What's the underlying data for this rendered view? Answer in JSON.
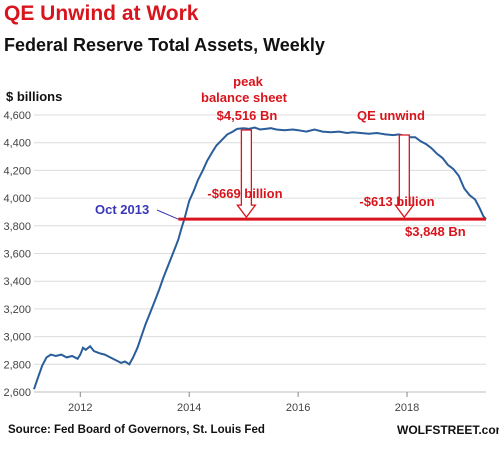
{
  "header": {
    "title": "QE Unwind at Work",
    "subtitle": "Federal Reserve Total Assets, Weekly"
  },
  "footer": {
    "source": "Source: Fed Board of Governors, St. Louis Fed",
    "brand": "WOLFSTREET.com"
  },
  "colors": {
    "line": "#2a5d9a",
    "accent": "#d9141c",
    "annotation_blue": "#3a37b8",
    "grid": "#dcdcdc"
  },
  "chart_data": {
    "type": "line",
    "title": "Federal Reserve Total Assets, Weekly",
    "ylabel": "$ billions",
    "xlim": [
      2011.15,
      2019.45
    ],
    "ylim": [
      2600,
      4600
    ],
    "x_ticks": [
      2012,
      2014,
      2016,
      2018
    ],
    "x_tick_labels": [
      "2012",
      "2014",
      "2016",
      "2018"
    ],
    "y_ticks": [
      2600,
      2800,
      3000,
      3200,
      3400,
      3600,
      3800,
      4000,
      4200,
      4400,
      4600
    ],
    "y_tick_labels": [
      "2,600",
      "2,800",
      "3,000",
      "3,200",
      "3,400",
      "3,600",
      "3,800",
      "4,000",
      "4,200",
      "4,400",
      "4,600"
    ],
    "grid": true,
    "series": [
      {
        "points": [
          [
            2011.15,
            2620
          ],
          [
            2011.22,
            2700
          ],
          [
            2011.3,
            2790
          ],
          [
            2011.38,
            2850
          ],
          [
            2011.46,
            2870
          ],
          [
            2011.55,
            2860
          ],
          [
            2011.65,
            2870
          ],
          [
            2011.75,
            2850
          ],
          [
            2011.85,
            2860
          ],
          [
            2011.95,
            2840
          ],
          [
            2012.0,
            2870
          ],
          [
            2012.05,
            2920
          ],
          [
            2012.1,
            2905
          ],
          [
            2012.18,
            2930
          ],
          [
            2012.25,
            2895
          ],
          [
            2012.35,
            2880
          ],
          [
            2012.45,
            2870
          ],
          [
            2012.55,
            2850
          ],
          [
            2012.65,
            2830
          ],
          [
            2012.75,
            2810
          ],
          [
            2012.82,
            2820
          ],
          [
            2012.9,
            2800
          ],
          [
            2012.97,
            2850
          ],
          [
            2013.05,
            2920
          ],
          [
            2013.12,
            3000
          ],
          [
            2013.2,
            3090
          ],
          [
            2013.28,
            3170
          ],
          [
            2013.36,
            3250
          ],
          [
            2013.44,
            3330
          ],
          [
            2013.52,
            3420
          ],
          [
            2013.6,
            3500
          ],
          [
            2013.68,
            3580
          ],
          [
            2013.75,
            3650
          ],
          [
            2013.8,
            3700
          ],
          [
            2013.85,
            3770
          ],
          [
            2013.92,
            3860
          ],
          [
            2014.0,
            3980
          ],
          [
            2014.08,
            4050
          ],
          [
            2014.16,
            4130
          ],
          [
            2014.25,
            4200
          ],
          [
            2014.33,
            4270
          ],
          [
            2014.42,
            4330
          ],
          [
            2014.5,
            4380
          ],
          [
            2014.6,
            4420
          ],
          [
            2014.7,
            4460
          ],
          [
            2014.8,
            4480
          ],
          [
            2014.88,
            4500
          ],
          [
            2015.0,
            4505
          ],
          [
            2015.1,
            4500
          ],
          [
            2015.2,
            4510
          ],
          [
            2015.3,
            4495
          ],
          [
            2015.4,
            4500
          ],
          [
            2015.5,
            4505
          ],
          [
            2015.6,
            4495
          ],
          [
            2015.75,
            4490
          ],
          [
            2015.9,
            4495
          ],
          [
            2016.0,
            4490
          ],
          [
            2016.15,
            4480
          ],
          [
            2016.3,
            4495
          ],
          [
            2016.45,
            4480
          ],
          [
            2016.6,
            4475
          ],
          [
            2016.75,
            4480
          ],
          [
            2016.9,
            4470
          ],
          [
            2017.0,
            4475
          ],
          [
            2017.15,
            4470
          ],
          [
            2017.3,
            4465
          ],
          [
            2017.45,
            4470
          ],
          [
            2017.6,
            4460
          ],
          [
            2017.75,
            4455
          ],
          [
            2017.85,
            4460
          ],
          [
            2017.95,
            4450
          ],
          [
            2018.05,
            4440
          ],
          [
            2018.15,
            4440
          ],
          [
            2018.25,
            4410
          ],
          [
            2018.35,
            4390
          ],
          [
            2018.45,
            4360
          ],
          [
            2018.55,
            4320
          ],
          [
            2018.65,
            4290
          ],
          [
            2018.75,
            4240
          ],
          [
            2018.85,
            4210
          ],
          [
            2018.95,
            4160
          ],
          [
            2019.05,
            4070
          ],
          [
            2019.15,
            4020
          ],
          [
            2019.25,
            3990
          ],
          [
            2019.33,
            3930
          ],
          [
            2019.4,
            3870
          ],
          [
            2019.45,
            3848
          ]
        ]
      }
    ],
    "reference_line": {
      "y": 3848
    },
    "annotations": {
      "peak_line1": "peak",
      "peak_line2": "balance sheet",
      "peak_value": "$4,516 Bn",
      "start_label": "Oct 2013",
      "drop1": "-$669 billion",
      "unwind": "QE unwind",
      "drop2": "-$613 billion",
      "end_value": "$3,848 Bn"
    },
    "arrow_points": {
      "start": [
        2013.8,
        3848
      ],
      "peak_arrow_x": 2015.05,
      "unwind_arrow_x": 2017.95
    }
  }
}
